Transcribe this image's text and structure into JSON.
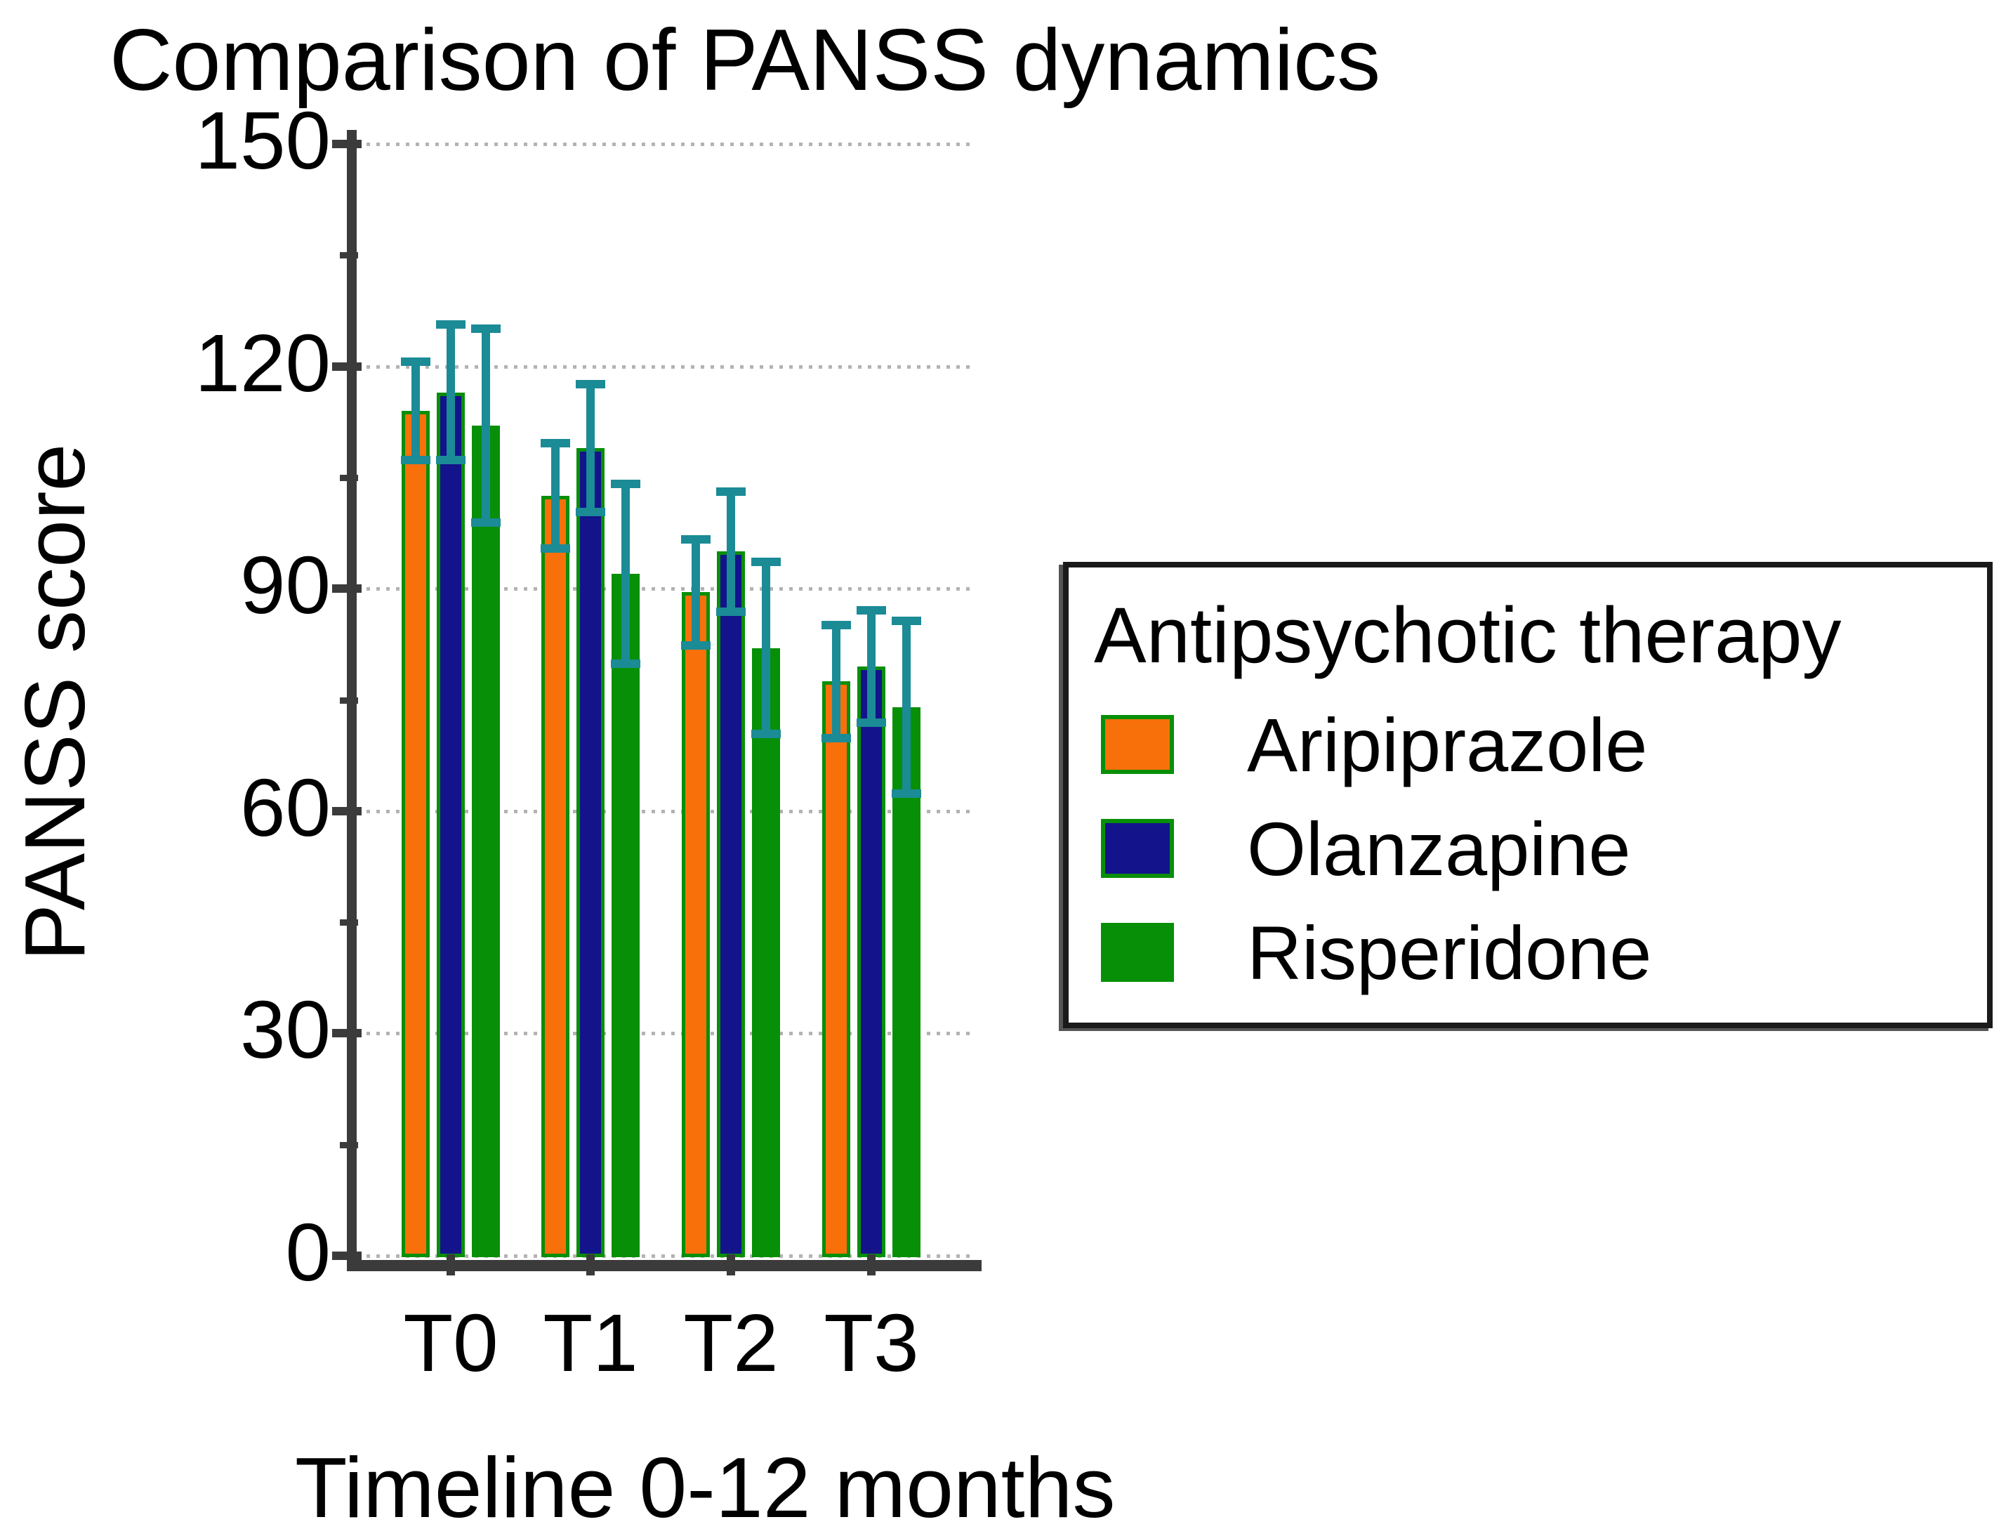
{
  "chart_data": {
    "type": "bar",
    "title": "Comparison of PANSS dynamics",
    "ylabel": "PANSS score",
    "xlabel": "Timeline 0-12 months",
    "categories": [
      "T0",
      "T1",
      "T2",
      "T3"
    ],
    "series": [
      {
        "name": "Aripiprazole",
        "color": "#F8700A",
        "values": [
          114,
          102.5,
          89.5,
          77.5
        ],
        "errors": [
          7,
          7.5,
          7.5,
          8
        ]
      },
      {
        "name": "Olanzapine",
        "color": "#13138C",
        "values": [
          116.5,
          109,
          95,
          79.5
        ],
        "errors": [
          9.5,
          9,
          8.5,
          8
        ]
      },
      {
        "name": "Risperidone",
        "color": "#088F08",
        "values": [
          112,
          92,
          82,
          74
        ],
        "errors": [
          13.5,
          12.5,
          12,
          12
        ]
      }
    ],
    "ylim": [
      0,
      150
    ],
    "yticks": [
      0,
      30,
      60,
      90,
      120,
      150
    ],
    "minor_yticks": [
      15,
      45,
      75,
      105,
      135
    ],
    "grid": "horizontal dotted, on major ticks",
    "legend": {
      "title": "Antipsychotic therapy",
      "position": "right"
    },
    "colors": {
      "bar_border": "#088F08",
      "error_bar": "#1B8B96",
      "axis": "#3b3b3b",
      "gridline": "#b3b3b3",
      "text": "#000000",
      "background": "#ffffff"
    }
  }
}
